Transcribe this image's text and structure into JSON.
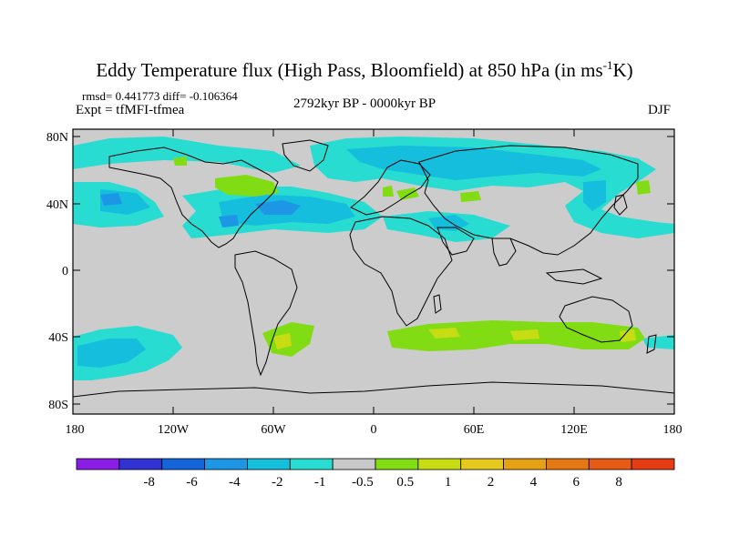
{
  "title": {
    "main": "Eddy Temperature flux (High Pass, Bloomfield) at 850 hPa (in ms",
    "sup": "-1",
    "end": "K)"
  },
  "stats": "rmsd= 0.441773 diff= -0.106364",
  "experiment": "Expt = tfMFI-tfmea",
  "period": "2792kyr BP - 0000kyr BP",
  "season": "DJF",
  "map": {
    "lat_ticks": [
      "80N",
      "40N",
      "0",
      "40S",
      "80S"
    ],
    "lon_ticks": [
      "180",
      "120W",
      "60W",
      "0",
      "60E",
      "120E",
      "180"
    ],
    "background_color": "#cccccc"
  },
  "colorbar": {
    "colors": [
      "#8a1ee6",
      "#3232d2",
      "#1464dc",
      "#1e96e6",
      "#14bedc",
      "#28dcd2",
      "#c8c8c8",
      "#82dc14",
      "#c8dc14",
      "#e6c81e",
      "#e6a014",
      "#e67814",
      "#e65a14",
      "#e63c14"
    ],
    "labels": [
      "-8",
      "-6",
      "-4",
      "-2",
      "-1",
      "-0.5",
      "0.5",
      "1",
      "2",
      "4",
      "6",
      "8"
    ]
  }
}
